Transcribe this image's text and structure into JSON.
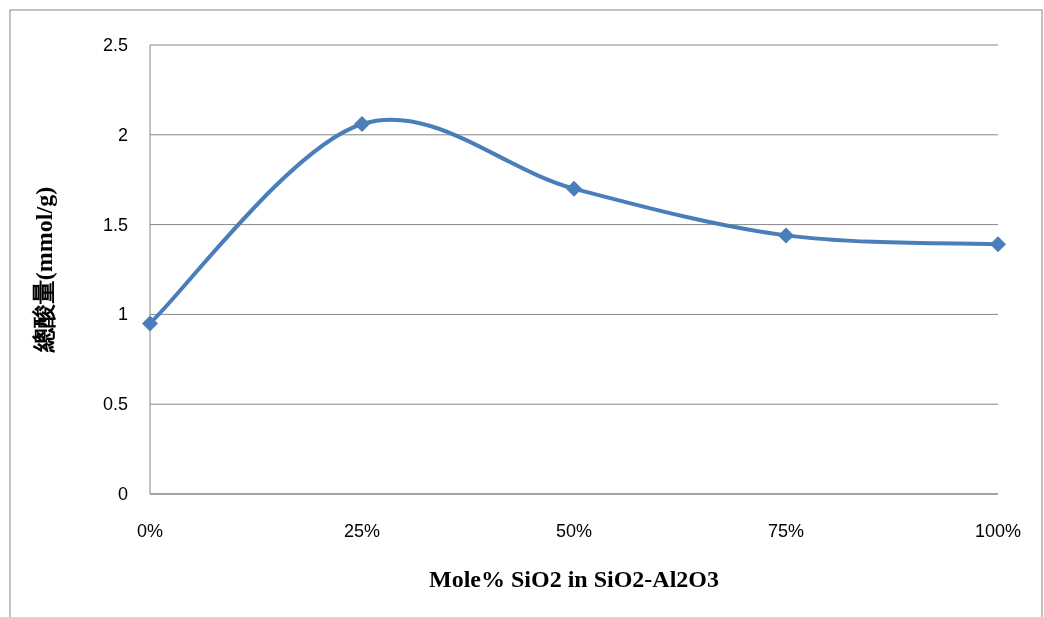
{
  "chart_data": {
    "type": "line",
    "xlabel": "Mole% SiO2 in SiO2-Al2O3",
    "ylabel": "總酸量(mmol/g)",
    "categories": [
      "0%",
      "25%",
      "50%",
      "75%",
      "100%"
    ],
    "series": [
      {
        "color": "#4a7ebb",
        "values": [
          0.95,
          2.06,
          1.7,
          1.44,
          1.39
        ]
      }
    ],
    "ylim": [
      0,
      2.5
    ],
    "yticks": [
      0,
      0.5,
      1,
      1.5,
      2,
      2.5
    ],
    "grid": "y",
    "marker": "diamond",
    "line_style": "solid"
  }
}
